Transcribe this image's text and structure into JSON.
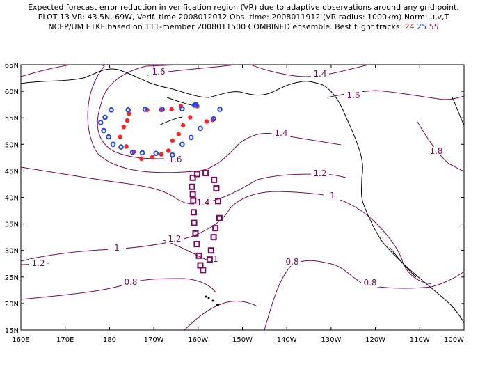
{
  "title": {
    "line1": "Expected forecast error reduction in verification region (VR) due to adaptive observations around any grid point.",
    "line2": "PLOT 13 VR: 43.5N, 69W, Verif. time 2008012012 Obs. time: 2008011912 (VR radius: 1000km) Norm: u,v,T",
    "line3_prefix": "NCEP/UM ETKF based on 111-member 2008011500 COMBINED ensemble.  Best flight tracks: ",
    "track_a": "24",
    "track_b": "25",
    "track_c": "55"
  },
  "axes": {
    "lat_labels": [
      "65N",
      "60N",
      "55N",
      "50N",
      "45N",
      "40N",
      "35N",
      "30N",
      "25N",
      "20N",
      "15N"
    ],
    "lon_labels": [
      "160E",
      "170E",
      "180",
      "170W",
      "160W",
      "150W",
      "140W",
      "130W",
      "120W",
      "110W",
      "100W"
    ]
  },
  "contour_labels": [
    "1.6",
    "1.4",
    "1.6",
    "1.4",
    "1.8",
    "1.6",
    "1.2",
    "1",
    "1.4",
    "1.2",
    "1",
    "1.2",
    "0.8",
    "1",
    "0.8",
    "0.8"
  ],
  "colors": {
    "contour": "#7a0a5c",
    "track_24": "#ff2222",
    "track_25": "#2244ff",
    "track_55": "#7a0a5c",
    "coast": "#000000"
  },
  "chart_data": {
    "type": "map",
    "projection": "lat-lon",
    "lon_range": [
      "160E",
      "100W"
    ],
    "lat_range": [
      "15N",
      "65N"
    ],
    "verification_region_center": "43.5N, 69W",
    "tracks": [
      {
        "name": "24",
        "marker": "filled-circle",
        "color": "#ff2222",
        "points": [
          [
            -163.9,
            57.2
          ],
          [
            -166.0,
            56.6
          ],
          [
            -168.4,
            56.5
          ],
          [
            -171.5,
            56.5
          ],
          [
            -175.6,
            55.8
          ],
          [
            -176.0,
            54.5
          ],
          [
            -176.8,
            53.3
          ],
          [
            -177.6,
            51.4
          ],
          [
            -176.2,
            49.6
          ],
          [
            -174.5,
            48.6
          ],
          [
            -172.8,
            47.3
          ],
          [
            -170.3,
            47.6
          ],
          [
            -168.3,
            48.1
          ],
          [
            -166.7,
            48.8
          ],
          [
            -165.8,
            50.7
          ],
          [
            -164.4,
            51.9
          ],
          [
            -163.4,
            53.6
          ],
          [
            -161.8,
            55.1
          ],
          [
            -160.2,
            57.2
          ],
          [
            -158.1,
            54.3
          ],
          [
            -156.7,
            54.6
          ]
        ]
      },
      {
        "name": "25",
        "marker": "open-circle",
        "color": "#2244ff",
        "points": [
          [
            -175.8,
            56.5
          ],
          [
            -172.0,
            56.6
          ],
          [
            -168.1,
            56.6
          ],
          [
            -163.6,
            56.7
          ],
          [
            -160.5,
            57.5
          ],
          [
            -159.5,
            53.0
          ],
          [
            -161.6,
            51.3
          ],
          [
            -163.6,
            50.0
          ],
          [
            -165.8,
            48.0
          ],
          [
            -169.5,
            48.3
          ],
          [
            -172.6,
            48.4
          ],
          [
            -174.8,
            48.5
          ],
          [
            -177.4,
            49.5
          ],
          [
            -179.2,
            50.0
          ],
          [
            179.8,
            51.4
          ],
          [
            178.7,
            52.6
          ],
          [
            178.0,
            54.1
          ],
          [
            179.0,
            55.1
          ],
          [
            -179.6,
            56.5
          ],
          [
            -160.8,
            57.4
          ],
          [
            -155.1,
            56.6
          ],
          [
            -156.5,
            54.8
          ]
        ]
      },
      {
        "name": "55",
        "marker": "open-square",
        "color": "#7a0a5c",
        "points": [
          [
            -160.2,
            44.4
          ],
          [
            -158.3,
            44.6
          ],
          [
            -156.4,
            43.3
          ],
          [
            -155.9,
            41.7
          ],
          [
            -155.5,
            39.3
          ],
          [
            -155.2,
            36.1
          ],
          [
            -156.1,
            34.2
          ],
          [
            -156.5,
            32.5
          ],
          [
            -157.1,
            30.0
          ],
          [
            -157.4,
            28.3
          ],
          [
            -158.9,
            26.3
          ],
          [
            -159.5,
            27.2
          ],
          [
            -159.8,
            29.0
          ],
          [
            -160.3,
            31.2
          ],
          [
            -160.6,
            33.2
          ],
          [
            -160.9,
            35.2
          ],
          [
            -161.0,
            37.2
          ],
          [
            -161.1,
            39.4
          ],
          [
            -161.2,
            40.6
          ],
          [
            -161.4,
            42.0
          ],
          [
            -161.2,
            43.7
          ]
        ]
      }
    ]
  }
}
